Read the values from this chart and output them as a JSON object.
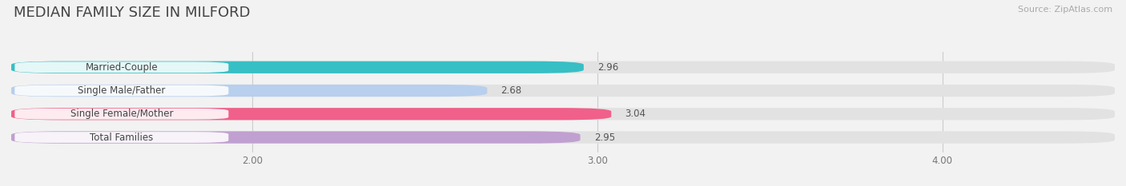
{
  "title": "MEDIAN FAMILY SIZE IN MILFORD",
  "source": "Source: ZipAtlas.com",
  "categories": [
    "Married-Couple",
    "Single Male/Father",
    "Single Female/Mother",
    "Total Families"
  ],
  "values": [
    2.96,
    2.68,
    3.04,
    2.95
  ],
  "bar_colors": [
    "#36bfc4",
    "#b8cfed",
    "#f0608a",
    "#c0a0d0"
  ],
  "xlim_min": 1.3,
  "xlim_max": 4.5,
  "xticks": [
    2.0,
    3.0,
    4.0
  ],
  "xtick_labels": [
    "2.00",
    "3.00",
    "4.00"
  ],
  "background_color": "#f2f2f2",
  "bar_bg_color": "#e2e2e2",
  "label_fontsize": 8.5,
  "value_fontsize": 8.5,
  "title_fontsize": 13,
  "source_fontsize": 8,
  "bar_height": 0.52,
  "bar_gap": 0.18
}
